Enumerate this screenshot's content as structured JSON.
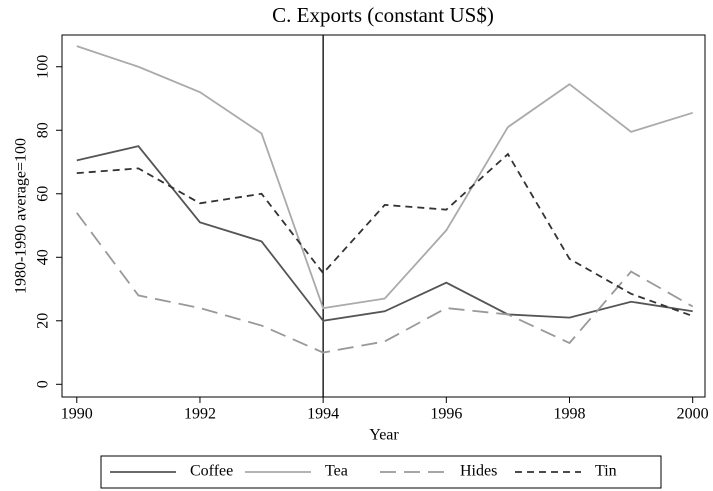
{
  "chart_data": {
    "type": "line",
    "title": "C. Exports (constant US$)",
    "xlabel": "Year",
    "ylabel": "1980-1990 average=100",
    "x": [
      1990,
      1991,
      1992,
      1993,
      1994,
      1995,
      1996,
      1997,
      1998,
      1999,
      2000
    ],
    "series": [
      {
        "name": "Coffee",
        "color": "#555555",
        "style": "solid",
        "values": [
          70.5,
          75,
          51,
          45,
          20,
          23,
          32,
          22,
          21,
          26,
          23
        ]
      },
      {
        "name": "Tea",
        "color": "#aaaaaa",
        "style": "solid",
        "values": [
          106.5,
          100,
          92,
          79,
          24,
          27,
          48.5,
          81,
          94.5,
          79.5,
          85.5
        ]
      },
      {
        "name": "Hides",
        "color": "#999999",
        "style": "longdash",
        "values": [
          54,
          28,
          24,
          18.5,
          10,
          13.5,
          24,
          22,
          13,
          35.5,
          24.5
        ]
      },
      {
        "name": "Tin",
        "color": "#333333",
        "style": "dash",
        "values": [
          66.5,
          68,
          57,
          60,
          35,
          56.5,
          55,
          72.5,
          39.5,
          28.5,
          21.5
        ]
      }
    ],
    "xlim": [
      1989.76,
      2000.2
    ],
    "ylim": [
      -4,
      110
    ],
    "xticks": [
      1990,
      1992,
      1994,
      1996,
      1998,
      2000
    ],
    "yticks": [
      0,
      20,
      40,
      60,
      80,
      100
    ],
    "vline": 1994,
    "legend": "bottom"
  }
}
